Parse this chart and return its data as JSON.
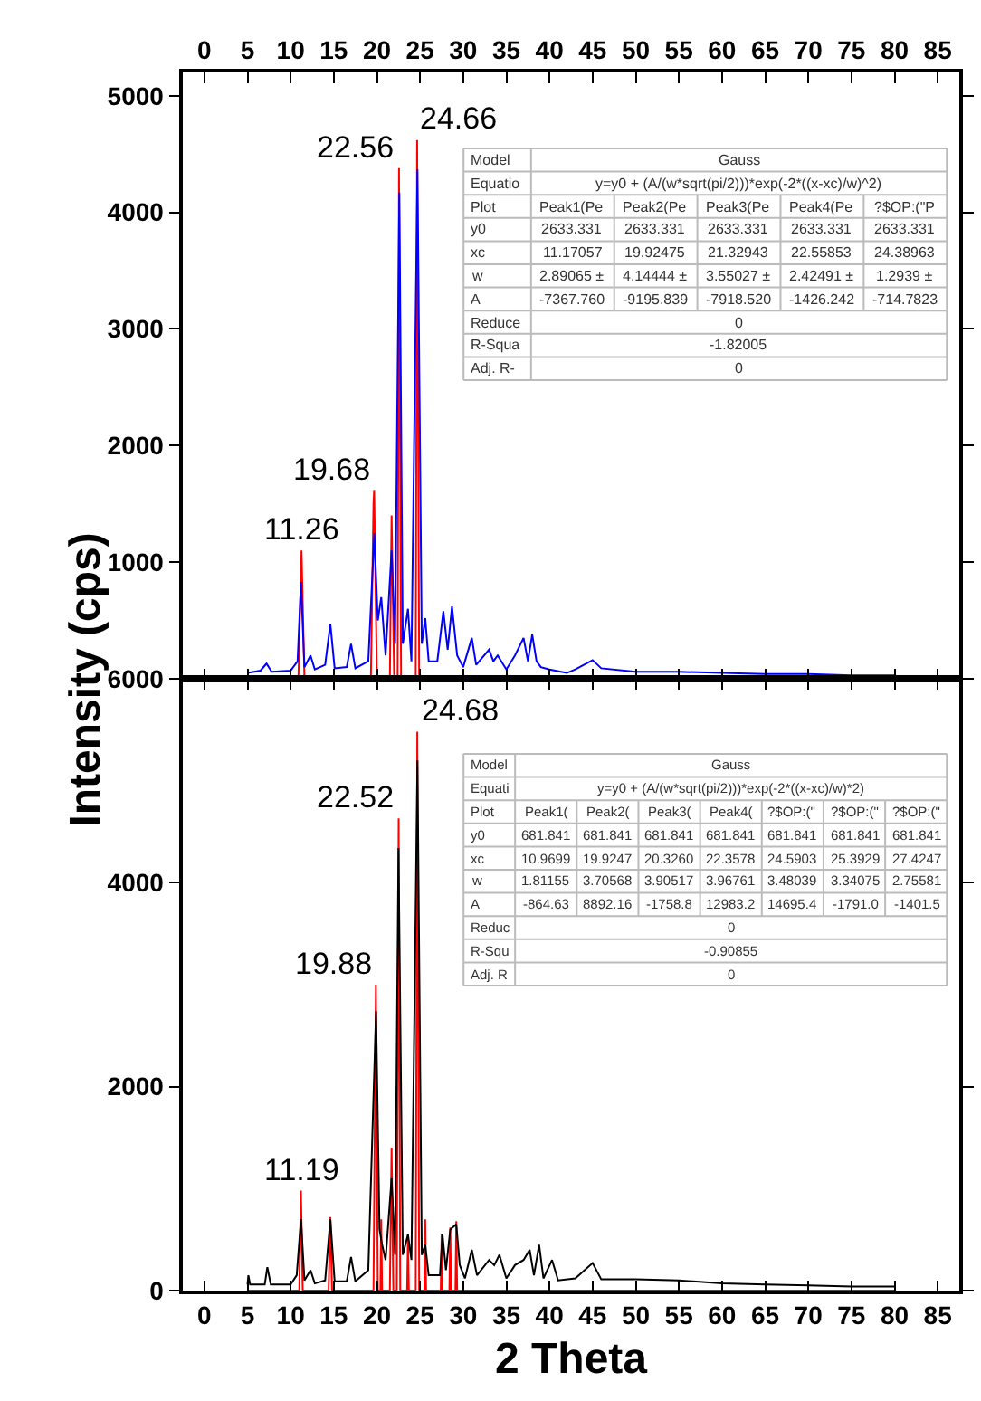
{
  "chart_data": [
    {
      "type": "line",
      "ylabel": "Intensity (cps)",
      "xlim": [
        -2.5,
        87.5
      ],
      "xticks": [
        0,
        5,
        10,
        15,
        20,
        25,
        30,
        35,
        40,
        45,
        50,
        55,
        60,
        65,
        70,
        75,
        80,
        85
      ],
      "ylim": [
        0,
        5200
      ],
      "yticks": [
        {
          "value": 0,
          "label": null
        },
        1000,
        2000,
        3000,
        4000,
        5000
      ],
      "series": [
        {
          "color": "#ff0000",
          "x": [
            5,
            10.9,
            11.26,
            11.6,
            19.3,
            19.6,
            19.68,
            20.0,
            21.5,
            21.7,
            22.0,
            22.4,
            22.56,
            22.8,
            24.5,
            24.66,
            24.9,
            80
          ],
          "values": [
            0,
            0,
            1100,
            0,
            0,
            1500,
            1620,
            0,
            0,
            1400,
            0,
            0,
            4380,
            0,
            0,
            4620,
            0,
            0
          ]
        },
        {
          "color": "#0000ff",
          "x": [
            5,
            6.5,
            7.2,
            7.8,
            10,
            10.8,
            11.2,
            11.6,
            12.3,
            12.8,
            14,
            14.6,
            15.1,
            16.5,
            17,
            17.5,
            19,
            19.7,
            20.1,
            20.5,
            21,
            21.7,
            22.1,
            22.6,
            23.0,
            23.6,
            24.0,
            24.7,
            25.2,
            25.6,
            26.0,
            27,
            27.7,
            28.2,
            28.7,
            29.3,
            30,
            31,
            31.5,
            33,
            33.5,
            34,
            35,
            36,
            37,
            37.5,
            38,
            38.5,
            39,
            40,
            42,
            43,
            45,
            46,
            50,
            55,
            60,
            65,
            70,
            75,
            80
          ],
          "values": [
            50,
            70,
            130,
            60,
            70,
            150,
            830,
            100,
            200,
            80,
            120,
            470,
            90,
            100,
            300,
            90,
            150,
            1250,
            500,
            700,
            200,
            1100,
            300,
            4170,
            300,
            600,
            150,
            4370,
            300,
            520,
            150,
            150,
            580,
            250,
            620,
            200,
            100,
            350,
            120,
            250,
            150,
            200,
            80,
            200,
            350,
            150,
            380,
            150,
            100,
            80,
            50,
            80,
            160,
            90,
            60,
            60,
            50,
            40,
            40,
            30,
            30
          ]
        }
      ],
      "annotations": [
        {
          "text": "11.26",
          "x": 11.26,
          "y": 1100
        },
        {
          "text": "19.68",
          "x": 19.68,
          "y": 1620
        },
        {
          "text": "22.56",
          "x": 22.56,
          "y": 4380
        },
        {
          "text": "24.66",
          "x": 24.66,
          "y": 4620
        },
        "Model",
        "Gauss",
        "Equatio",
        "y=y0 + (A/(w*sqrt(pi/2)))*exp(-2*((x-xc)/w)^2)",
        "Plot",
        "Peak1(Pe",
        "Peak2(Pe",
        "Peak3(Pe",
        "Peak4(Pe",
        "?$OP:(\"P",
        "y0",
        "2633.331",
        "2633.331",
        "2633.331",
        "2633.331",
        "2633.331",
        "xc",
        "11.17057",
        "19.92475",
        "21.32943",
        "22.55853",
        "24.38963",
        "w",
        "2.89065 ±",
        "4.14444 ±",
        "3.55027 ±",
        "2.42491 ±",
        "1.2939 ±",
        "A",
        "-7367.760",
        "-9195.839",
        "-7918.520",
        "-1426.242",
        "-714.7823",
        "Reduce",
        "0",
        "R-Squa",
        "-1.82005",
        "Adj. R-",
        "0"
      ]
    },
    {
      "type": "line",
      "xlabel": "2 Theta",
      "xlim": [
        -2.5,
        87.5
      ],
      "xticks": [
        0,
        5,
        10,
        15,
        20,
        25,
        30,
        35,
        40,
        45,
        50,
        55,
        60,
        65,
        70,
        75,
        80,
        85
      ],
      "ylim": [
        0,
        6000
      ],
      "yticks": [
        0,
        2000,
        4000,
        6000
      ],
      "series": [
        {
          "color": "#ff0000",
          "x": [
            5,
            11.0,
            11.19,
            11.4,
            14.4,
            14.6,
            14.8,
            19.6,
            19.88,
            20.1,
            20.4,
            20.5,
            20.6,
            21.5,
            21.7,
            21.9,
            22.3,
            22.52,
            22.7,
            23.5,
            23.6,
            23.7,
            24.5,
            24.68,
            24.9,
            25.5,
            25.6,
            25.7,
            27.4,
            27.5,
            27.6,
            28.4,
            28.5,
            28.6,
            29.1,
            29.2,
            29.3,
            80
          ],
          "values": [
            0,
            0,
            980,
            0,
            0,
            720,
            0,
            0,
            3000,
            0,
            0,
            700,
            0,
            0,
            1400,
            0,
            0,
            4630,
            0,
            0,
            550,
            0,
            0,
            5480,
            0,
            0,
            700,
            0,
            0,
            550,
            0,
            0,
            620,
            0,
            0,
            680,
            0,
            0
          ]
        },
        {
          "color": "#000000",
          "x": [
            5,
            5.1,
            5.3,
            7,
            7.3,
            7.7,
            10,
            10.7,
            11.2,
            11.6,
            12.3,
            12.8,
            14,
            14.6,
            15.1,
            16.5,
            17,
            17.5,
            19,
            19.9,
            20.3,
            20.6,
            21,
            21.7,
            22.1,
            22.5,
            23,
            23.6,
            24.0,
            24.7,
            25.2,
            25.6,
            26,
            27.3,
            27.6,
            28,
            28.5,
            29.2,
            29.6,
            30.2,
            31,
            31.6,
            33,
            33.6,
            34.2,
            35,
            36,
            37,
            37.7,
            38.2,
            38.8,
            39.3,
            40.3,
            41,
            43,
            45,
            46,
            50,
            55,
            60,
            65,
            70,
            75,
            80
          ],
          "values": [
            60,
            150,
            60,
            60,
            230,
            60,
            60,
            150,
            700,
            100,
            200,
            70,
            100,
            700,
            90,
            90,
            330,
            90,
            200,
            2740,
            600,
            450,
            300,
            1100,
            350,
            4340,
            350,
            550,
            300,
            5200,
            350,
            450,
            150,
            150,
            550,
            200,
            600,
            650,
            250,
            120,
            400,
            150,
            300,
            250,
            350,
            120,
            250,
            300,
            400,
            150,
            450,
            120,
            300,
            100,
            120,
            270,
            110,
            110,
            100,
            70,
            60,
            50,
            40,
            40
          ]
        }
      ],
      "annotations": [
        {
          "text": "11.19",
          "x": 11.19,
          "y": 980
        },
        {
          "text": "19.88",
          "x": 19.88,
          "y": 3000
        },
        {
          "text": "22.52",
          "x": 22.52,
          "y": 4630
        },
        {
          "text": "24.68",
          "x": 24.68,
          "y": 5480
        },
        "Model",
        "Gauss",
        "Equati",
        "y=y0 + (A/(w*sqrt(pi/2)))*exp(-2*((x-xc)/w)*2)",
        "Plot",
        "Peak1(",
        "Peak2(",
        "Peak3(",
        "Peak4(",
        "?$OP:(\"",
        "?$OP:(\"",
        "?$OP:(\"",
        "y0",
        "681.841",
        "681.841",
        "681.841",
        "681.841",
        "681.841",
        "681.841",
        "681.841",
        "xc",
        "10.9699",
        "19.9247",
        "20.3260",
        "22.3578",
        "24.5903",
        "25.3929",
        "27.4247",
        "w",
        "1.81155",
        "3.70568",
        "3.90517",
        "3.96761",
        "3.48039",
        "3.34075",
        "2.75581",
        "A",
        "-864.63",
        "8892.16",
        "-1758.8",
        "12983.2",
        "14695.4",
        "-1791.0",
        "-1401.5",
        "Reduc",
        "0",
        "R-Squ",
        "-0.90855",
        "Adj. R",
        "0"
      ]
    }
  ]
}
